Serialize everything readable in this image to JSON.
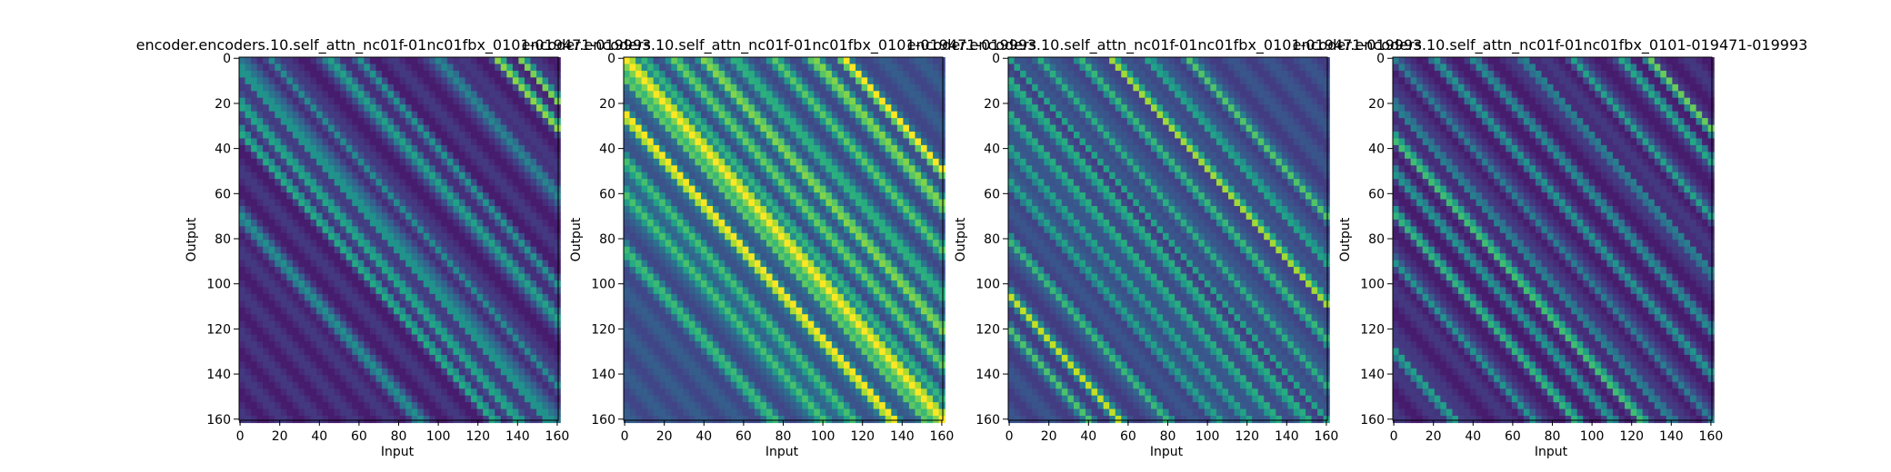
{
  "chart_data": [
    {
      "type": "heatmap",
      "title": "encoder.encoders.10.self_attn_nc01f-01nc01fbx_0101-019471-019993",
      "xlabel": "Input",
      "ylabel": "Output",
      "xlim": [
        0,
        161
      ],
      "ylim": [
        161,
        0
      ],
      "xticks": [
        0,
        20,
        40,
        60,
        80,
        100,
        120,
        140,
        160
      ],
      "yticks": [
        0,
        20,
        40,
        60,
        80,
        100,
        120,
        140,
        160
      ],
      "colormap": "viridis",
      "bands": [
        {
          "offset": 0,
          "strength": 0.25,
          "width": 3
        },
        {
          "offset": -5,
          "strength": 0.45,
          "width": 2
        },
        {
          "offset": -20,
          "strength": 0.55,
          "width": 2.5
        },
        {
          "offset": -32,
          "strength": 0.5,
          "width": 2
        },
        {
          "offset": 15,
          "strength": 0.4,
          "width": 2
        },
        {
          "offset": 45,
          "strength": 0.45,
          "width": 3
        },
        {
          "offset": 60,
          "strength": 0.35,
          "width": 2
        },
        {
          "offset": -70,
          "strength": 0.35,
          "width": 3
        },
        {
          "offset": 100,
          "strength": 0.35,
          "width": 3
        },
        {
          "offset": 130,
          "strength": 0.75,
          "width": 2
        },
        {
          "offset": 142,
          "strength": 0.9,
          "width": 1.5
        }
      ],
      "base": 0.12,
      "grid": false
    },
    {
      "type": "heatmap",
      "title": "encoder.encoders.10.self_attn_nc01f-01nc01fbx_0101-019471-019993",
      "xlabel": "Input",
      "ylabel": "Output",
      "xlim": [
        0,
        161
      ],
      "ylim": [
        161,
        0
      ],
      "xticks": [
        0,
        20,
        40,
        60,
        80,
        100,
        120,
        140,
        160
      ],
      "yticks": [
        0,
        20,
        40,
        60,
        80,
        100,
        120,
        140,
        160
      ],
      "colormap": "viridis",
      "bands": [
        {
          "offset": 0,
          "strength": 0.95,
          "width": 3
        },
        {
          "offset": -8,
          "strength": 0.55,
          "width": 2
        },
        {
          "offset": -25,
          "strength": 0.85,
          "width": 2.5
        },
        {
          "offset": 10,
          "strength": 0.45,
          "width": 2
        },
        {
          "offset": 25,
          "strength": 0.5,
          "width": 3
        },
        {
          "offset": 40,
          "strength": 0.55,
          "width": 3
        },
        {
          "offset": 55,
          "strength": 0.4,
          "width": 3
        },
        {
          "offset": 75,
          "strength": 0.45,
          "width": 3
        },
        {
          "offset": 95,
          "strength": 0.55,
          "width": 3
        },
        {
          "offset": 110,
          "strength": 0.8,
          "width": 2
        },
        {
          "offset": -45,
          "strength": 0.45,
          "width": 3
        },
        {
          "offset": -60,
          "strength": 0.5,
          "width": 3
        },
        {
          "offset": -85,
          "strength": 0.4,
          "width": 3
        }
      ],
      "base": 0.25,
      "grid": false
    },
    {
      "type": "heatmap",
      "title": "encoder.encoders.10.self_attn_nc01f-01nc01fbx_0101-019471-019993",
      "xlabel": "Input",
      "ylabel": "Output",
      "xlim": [
        0,
        161
      ],
      "ylim": [
        161,
        0
      ],
      "xticks": [
        0,
        20,
        40,
        60,
        80,
        100,
        120,
        140,
        160
      ],
      "yticks": [
        0,
        20,
        40,
        60,
        80,
        100,
        120,
        140,
        160
      ],
      "colormap": "viridis",
      "bands": [
        {
          "offset": 0,
          "strength": 0.35,
          "width": 1
        },
        {
          "offset": -10,
          "strength": 0.45,
          "width": 2
        },
        {
          "offset": -25,
          "strength": 0.5,
          "width": 2
        },
        {
          "offset": -40,
          "strength": 0.45,
          "width": 2
        },
        {
          "offset": -55,
          "strength": 0.4,
          "width": 2
        },
        {
          "offset": -80,
          "strength": 0.5,
          "width": 2
        },
        {
          "offset": -105,
          "strength": 0.65,
          "width": 2
        },
        {
          "offset": -120,
          "strength": 0.45,
          "width": 2
        },
        {
          "offset": 15,
          "strength": 0.45,
          "width": 2
        },
        {
          "offset": 35,
          "strength": 0.5,
          "width": 2
        },
        {
          "offset": 52,
          "strength": 0.85,
          "width": 1.5
        },
        {
          "offset": 70,
          "strength": 0.45,
          "width": 2
        },
        {
          "offset": 90,
          "strength": 0.5,
          "width": 2
        }
      ],
      "base": 0.22,
      "grid": false
    },
    {
      "type": "heatmap",
      "title": "encoder.encoders.10.self_attn_nc01f-01nc01fbx_0101-019471-019993",
      "xlabel": "Input",
      "ylabel": "Output",
      "xlim": [
        0,
        161
      ],
      "ylim": [
        161,
        0
      ],
      "xticks": [
        0,
        20,
        40,
        60,
        80,
        100,
        120,
        140,
        160
      ],
      "yticks": [
        0,
        20,
        40,
        60,
        80,
        100,
        120,
        140,
        160
      ],
      "colormap": "viridis",
      "bands": [
        {
          "offset": 0,
          "strength": 0.3,
          "width": 2
        },
        {
          "offset": -20,
          "strength": 0.4,
          "width": 2
        },
        {
          "offset": -35,
          "strength": 0.65,
          "width": 2
        },
        {
          "offset": -50,
          "strength": 0.4,
          "width": 2
        },
        {
          "offset": -68,
          "strength": 0.55,
          "width": 2
        },
        {
          "offset": -90,
          "strength": 0.4,
          "width": 2
        },
        {
          "offset": -130,
          "strength": 0.55,
          "width": 2
        },
        {
          "offset": 20,
          "strength": 0.4,
          "width": 2
        },
        {
          "offset": 40,
          "strength": 0.35,
          "width": 2
        },
        {
          "offset": 65,
          "strength": 0.4,
          "width": 2
        },
        {
          "offset": 90,
          "strength": 0.45,
          "width": 2
        },
        {
          "offset": 115,
          "strength": 0.5,
          "width": 2
        },
        {
          "offset": 128,
          "strength": 0.75,
          "width": 1.5
        }
      ],
      "base": 0.12,
      "grid": false
    }
  ]
}
